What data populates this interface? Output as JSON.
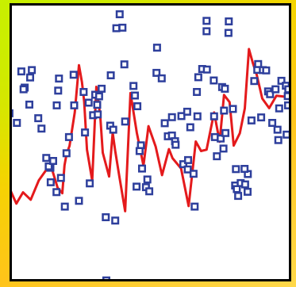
{
  "colors": {
    "marker": "#2e3f9c",
    "line": "#e41a1c",
    "plot_background": "#ffffff",
    "frame": "#000000",
    "page_background_top": "#c7ef00",
    "page_background_bottom": "#ffc41a"
  },
  "chart_data": {
    "type": "scatter",
    "title": "",
    "xlabel": "",
    "ylabel": "",
    "xlim": [
      0,
      100
    ],
    "ylim": [
      0,
      100
    ],
    "grid": false,
    "legend": "none",
    "axes_visible": false,
    "series": [
      {
        "kind": "scatter",
        "marker": "square",
        "points": [
          [
            -0.9,
            60.6
          ],
          [
            1.8,
            57.1
          ],
          [
            4.6,
            70.0
          ],
          [
            6.3,
            63.8
          ],
          [
            3.4,
            75.9
          ],
          [
            4.2,
            69.4
          ],
          [
            7.2,
            76.4
          ],
          [
            6.6,
            73.7
          ],
          [
            9.5,
            58.8
          ],
          [
            13.9,
            40.7
          ],
          [
            10.7,
            55.0
          ],
          [
            12.4,
            44.3
          ],
          [
            13.3,
            41.2
          ],
          [
            14.0,
            35.4
          ],
          [
            14.9,
            43.2
          ],
          [
            16.1,
            31.8
          ],
          [
            16.2,
            63.5
          ],
          [
            16.7,
            68.9
          ],
          [
            17.0,
            73.3
          ],
          [
            19.7,
            46.0
          ],
          [
            19.1,
            26.5
          ],
          [
            17.7,
            37.0
          ],
          [
            20.6,
            51.9
          ],
          [
            22.5,
            63.5
          ],
          [
            22.3,
            74.7
          ],
          [
            24.2,
            28.6
          ],
          [
            25.9,
            68.4
          ],
          [
            26.4,
            53.6
          ],
          [
            28.1,
            35.0
          ],
          [
            27.7,
            64.5
          ],
          [
            29.3,
            59.9
          ],
          [
            30.1,
            67.4
          ],
          [
            30.8,
            63.7
          ],
          [
            31.0,
            60.2
          ],
          [
            31.5,
            66.8
          ],
          [
            32.4,
            69.6
          ],
          [
            35.7,
            74.5
          ],
          [
            35.5,
            56.1
          ],
          [
            36.6,
            54.6
          ],
          [
            33.9,
            22.6
          ],
          [
            34.1,
            -0.5
          ],
          [
            37.7,
            91.7
          ],
          [
            37.3,
            21.4
          ],
          [
            38.9,
            96.8
          ],
          [
            39.9,
            91.9
          ],
          [
            40.6,
            78.5
          ],
          [
            40.9,
            57.6
          ],
          [
            43.9,
            70.6
          ],
          [
            44.4,
            67.1
          ],
          [
            45.3,
            63.2
          ],
          [
            45.0,
            33.8
          ],
          [
            46.6,
            48.9
          ],
          [
            46.1,
            46.8
          ],
          [
            47.0,
            40.4
          ],
          [
            48.9,
            36.4
          ],
          [
            48.4,
            33.6
          ],
          [
            49.6,
            32.1
          ],
          [
            52.4,
            84.6
          ],
          [
            52.2,
            75.4
          ],
          [
            54.1,
            73.4
          ],
          [
            56.3,
            52.2
          ],
          [
            55.2,
            57.0
          ],
          [
            57.8,
            59.2
          ],
          [
            57.8,
            52.5
          ],
          [
            58.9,
            50.4
          ],
          [
            59.1,
            49.1
          ],
          [
            61.9,
            42.0
          ],
          [
            61.2,
            59.6
          ],
          [
            63.3,
            61.2
          ],
          [
            63.6,
            43.5
          ],
          [
            64.4,
            55.5
          ],
          [
            63.5,
            40.1
          ],
          [
            66.0,
            26.5
          ],
          [
            65.6,
            38.5
          ],
          [
            66.8,
            68.4
          ],
          [
            67.3,
            73.8
          ],
          [
            67.0,
            59.5
          ],
          [
            68.7,
            76.8
          ],
          [
            70.4,
            76.6
          ],
          [
            70.3,
            90.6
          ],
          [
            70.3,
            94.4
          ],
          [
            72.9,
            72.6
          ],
          [
            73.3,
            51.9
          ],
          [
            73.0,
            59.5
          ],
          [
            74.0,
            44.9
          ],
          [
            75.4,
            51.4
          ],
          [
            75.9,
            70.2
          ],
          [
            76.9,
            69.6
          ],
          [
            76.6,
            61.6
          ],
          [
            77.1,
            53.4
          ],
          [
            76.4,
            47.7
          ],
          [
            78.2,
            90.0
          ],
          [
            78.3,
            94.2
          ],
          [
            79.8,
            62.2
          ],
          [
            80.9,
            40.2
          ],
          [
            80.6,
            34.2
          ],
          [
            81.7,
            30.4
          ],
          [
            81.2,
            32.9
          ],
          [
            82.6,
            35.1
          ],
          [
            84.2,
            34.6
          ],
          [
            85.1,
            31.9
          ],
          [
            85.2,
            38.4
          ],
          [
            84.0,
            40.3
          ],
          [
            86.5,
            58.0
          ],
          [
            87.5,
            72.4
          ],
          [
            88.6,
            76.5
          ],
          [
            88.9,
            78.6
          ],
          [
            90.0,
            59.1
          ],
          [
            90.6,
            76.4
          ],
          [
            91.8,
            76.3
          ],
          [
            92.5,
            68.6
          ],
          [
            93.2,
            67.6
          ],
          [
            94.0,
            57.1
          ],
          [
            95.2,
            69.4
          ],
          [
            95.9,
            54.6
          ],
          [
            96.5,
            62.4
          ],
          [
            96.2,
            50.8
          ],
          [
            97.3,
            72.5
          ],
          [
            98.9,
            70.7
          ],
          [
            99.8,
            69.4
          ],
          [
            99.6,
            66.9
          ],
          [
            99.7,
            63.5
          ],
          [
            99.2,
            52.8
          ]
        ]
      },
      {
        "kind": "line",
        "points": [
          [
            -1.4,
            34.4
          ],
          [
            1.6,
            27.6
          ],
          [
            4.0,
            31.7
          ],
          [
            6.8,
            29.0
          ],
          [
            9.7,
            36.1
          ],
          [
            12.4,
            39.9
          ],
          [
            14.0,
            41.8
          ],
          [
            14.8,
            39.0
          ],
          [
            16.5,
            33.4
          ],
          [
            18.2,
            31.4
          ],
          [
            19.0,
            41.6
          ],
          [
            19.7,
            45.6
          ],
          [
            20.8,
            48.7
          ],
          [
            22.7,
            60.9
          ],
          [
            24.2,
            78.2
          ],
          [
            25.3,
            71.9
          ],
          [
            26.1,
            64.8
          ],
          [
            27.1,
            47.3
          ],
          [
            29.0,
            36.0
          ],
          [
            30.5,
            70.3
          ],
          [
            31.9,
            59.8
          ],
          [
            32.8,
            46.2
          ],
          [
            35.1,
            37.5
          ],
          [
            36.4,
            53.5
          ],
          [
            37.3,
            46.8
          ],
          [
            38.8,
            37.5
          ],
          [
            40.9,
            24.8
          ],
          [
            42.8,
            68.0
          ],
          [
            45.1,
            53.5
          ],
          [
            47.5,
            41.5
          ],
          [
            49.3,
            55.9
          ],
          [
            51.9,
            48.5
          ],
          [
            54.2,
            38.0
          ],
          [
            56.7,
            47.5
          ],
          [
            58.0,
            44.2
          ],
          [
            61.1,
            40.4
          ],
          [
            63.8,
            26.7
          ],
          [
            66.4,
            50.3
          ],
          [
            68.3,
            46.8
          ],
          [
            70.3,
            47.3
          ],
          [
            73.0,
            60.9
          ],
          [
            75.0,
            50.2
          ],
          [
            76.6,
            67.3
          ],
          [
            78.6,
            64.7
          ],
          [
            80.1,
            48.8
          ],
          [
            82.3,
            53.3
          ],
          [
            84.1,
            62.4
          ],
          [
            85.6,
            84.1
          ],
          [
            87.0,
            79.0
          ],
          [
            88.4,
            74.7
          ],
          [
            90.4,
            66.0
          ],
          [
            92.9,
            62.5
          ],
          [
            95.5,
            67.0
          ],
          [
            98.4,
            66.7
          ],
          [
            101.0,
            65.4
          ]
        ]
      }
    ]
  }
}
